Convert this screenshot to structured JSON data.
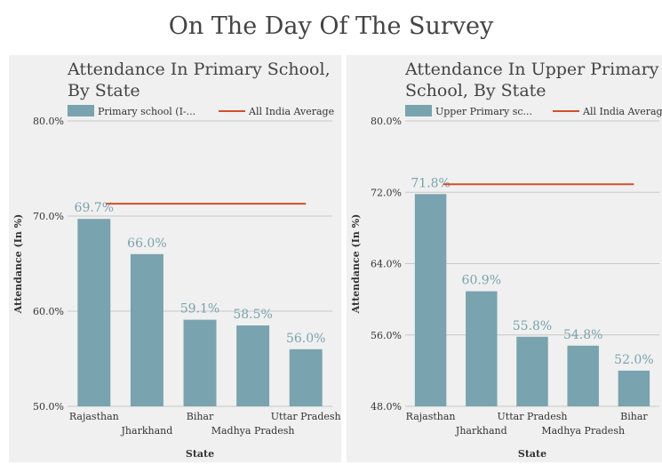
{
  "title": "On The Day Of The Survey",
  "colors": {
    "bar": "#79a3ae",
    "avg_line": "#d0502b",
    "label": "#79a3ae",
    "panel_bg": "#f0f0f0"
  },
  "chart_data": [
    {
      "type": "bar",
      "title_lines": [
        "Attendance In Primary School,",
        "By State"
      ],
      "legend": {
        "bar_label": "Primary school (I-...",
        "line_label": "All India Average",
        "position": "top"
      },
      "xlabel": "State",
      "ylabel": "Attendance (In %)",
      "ylim": [
        50,
        80
      ],
      "yticks": [
        50,
        60,
        70,
        80
      ],
      "ytick_labels": [
        "50.0%",
        "60.0%",
        "70.0%",
        "80.0%"
      ],
      "categories": [
        "Rajasthan",
        "Jharkhand",
        "Bihar",
        "Madhya Pradesh",
        "Uttar Pradesh"
      ],
      "values": [
        69.7,
        66.0,
        59.1,
        58.5,
        56.0
      ],
      "value_labels": [
        "69.7%",
        "66.0%",
        "59.1%",
        "58.5%",
        "56.0%"
      ],
      "average": 71.3,
      "grid": true
    },
    {
      "type": "bar",
      "title_lines": [
        "Attendance In Upper Primary",
        "School, By State"
      ],
      "legend": {
        "bar_label": "Upper Primary sc...",
        "line_label": "All India Average",
        "position": "top"
      },
      "xlabel": "State",
      "ylabel": "Attendance (In %)",
      "ylim": [
        48,
        80
      ],
      "yticks": [
        48,
        56,
        64,
        72,
        80
      ],
      "ytick_labels": [
        "48.0%",
        "56.0%",
        "64.0%",
        "72.0%",
        "80.0%"
      ],
      "categories": [
        "Rajasthan",
        "Jharkhand",
        "Uttar Pradesh",
        "Madhya Pradesh",
        "Bihar"
      ],
      "values": [
        71.8,
        60.9,
        55.8,
        54.8,
        52.0
      ],
      "value_labels": [
        "71.8%",
        "60.9%",
        "55.8%",
        "54.8%",
        "52.0%"
      ],
      "average": 72.9,
      "grid": true
    }
  ]
}
